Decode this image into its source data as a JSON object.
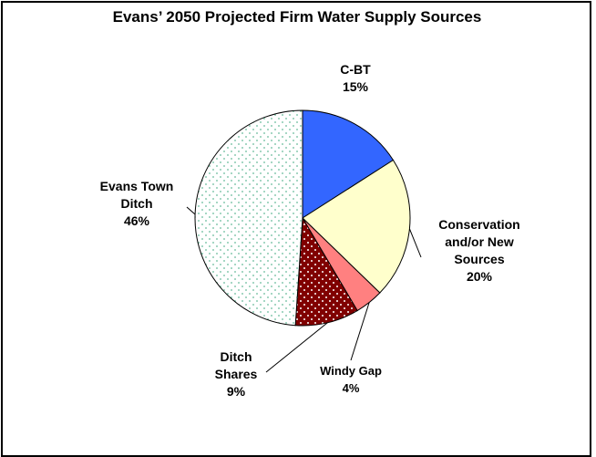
{
  "chart_data": {
    "type": "pie",
    "title": "Evans’ 2050 Projected Firm Water Supply Sources",
    "slices": [
      {
        "name": "C-BT",
        "label_lines": [
          "C-BT"
        ],
        "value": 15,
        "value_label": "15%",
        "color": "#3366ff",
        "pattern": "solid"
      },
      {
        "name": "Conservation and/or New Sources",
        "label_lines": [
          "Conservation",
          "and/or New",
          "Sources"
        ],
        "value": 20,
        "value_label": "20%",
        "color": "#ffffcc",
        "pattern": "solid"
      },
      {
        "name": "Windy Gap",
        "label_lines": [
          "Windy Gap"
        ],
        "value": 4,
        "value_label": "4%",
        "color": "#ff8080",
        "pattern": "solid"
      },
      {
        "name": "Ditch Shares",
        "label_lines": [
          "Ditch",
          "Shares"
        ],
        "value": 9,
        "value_label": "9%",
        "color": "#800000",
        "pattern": "white-dots"
      },
      {
        "name": "Evans Town Ditch",
        "label_lines": [
          "Evans Town",
          "Ditch"
        ],
        "value": 46,
        "value_label": "46%",
        "color": "#ffffff",
        "pattern": "green-dots"
      }
    ]
  }
}
